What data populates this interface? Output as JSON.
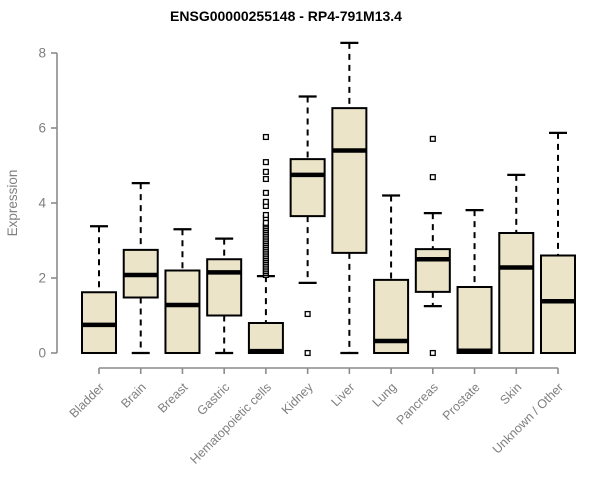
{
  "chart_data": {
    "type": "boxplot",
    "title": "ENSG00000255148 - RP4-791M13.4",
    "ylabel": "Expression",
    "xlabel": "",
    "ylim": [
      0,
      8
    ],
    "yticks": [
      0,
      2,
      4,
      6,
      8
    ],
    "grid": false,
    "legend": "none",
    "colors": {
      "box_fill": "#EBE4C8",
      "box_stroke": "#000000",
      "median": "#000000",
      "whisker": "#000000",
      "outlier_stroke": "#000000",
      "outlier_fill": "#ffffff",
      "axis_line": "#8c8c8c",
      "tick_label": "#7f7f7f",
      "title_color": "#000000"
    },
    "categories": [
      "Bladder",
      "Brain",
      "Breast",
      "Gastric",
      "Hematopoietic cells",
      "Kidney",
      "Liver",
      "Lung",
      "Pancreas",
      "Prostate",
      "Skin",
      "Unknown / Other"
    ],
    "boxes": [
      {
        "category": "Bladder",
        "low": 0,
        "q1": 0,
        "median": 0.75,
        "q3": 1.62,
        "high": 3.38,
        "outliers": []
      },
      {
        "category": "Brain",
        "low": 0,
        "q1": 1.48,
        "median": 2.08,
        "q3": 2.75,
        "high": 4.53,
        "outliers": []
      },
      {
        "category": "Breast",
        "low": 0,
        "q1": 0,
        "median": 1.28,
        "q3": 2.2,
        "high": 3.3,
        "outliers": []
      },
      {
        "category": "Gastric",
        "low": 0,
        "q1": 1.0,
        "median": 2.15,
        "q3": 2.5,
        "high": 3.05,
        "outliers": []
      },
      {
        "category": "Hematopoietic cells",
        "low": 0,
        "q1": 0,
        "median": 0.05,
        "q3": 0.8,
        "high": 2.05,
        "outliers": [
          2.08,
          2.13,
          2.18,
          2.23,
          2.28,
          2.33,
          2.38,
          2.43,
          2.48,
          2.53,
          2.58,
          2.63,
          2.68,
          2.73,
          2.78,
          2.83,
          2.88,
          2.93,
          2.98,
          3.03,
          3.08,
          3.13,
          3.18,
          3.23,
          3.28,
          3.33,
          3.38,
          3.43,
          3.47,
          3.6,
          3.68,
          3.92,
          4.03,
          4.27,
          4.64,
          4.83,
          5.09,
          5.76
        ]
      },
      {
        "category": "Kidney",
        "low": 1.87,
        "q1": 3.65,
        "median": 4.75,
        "q3": 5.17,
        "high": 6.84,
        "outliers": [
          1.04,
          0
        ]
      },
      {
        "category": "Liver",
        "low": 0,
        "q1": 2.67,
        "median": 5.4,
        "q3": 6.53,
        "high": 8.27,
        "outliers": []
      },
      {
        "category": "Lung",
        "low": 0,
        "q1": 0,
        "median": 0.32,
        "q3": 1.95,
        "high": 4.2,
        "outliers": []
      },
      {
        "category": "Pancreas",
        "low": 1.25,
        "q1": 1.63,
        "median": 2.5,
        "q3": 2.77,
        "high": 3.73,
        "outliers": [
          5.71,
          4.69,
          0
        ]
      },
      {
        "category": "Prostate",
        "low": 0,
        "q1": 0,
        "median": 0.06,
        "q3": 1.76,
        "high": 3.81,
        "outliers": []
      },
      {
        "category": "Skin",
        "low": 0,
        "q1": 0,
        "median": 2.28,
        "q3": 3.2,
        "high": 4.75,
        "outliers": []
      },
      {
        "category": "Unknown / Other",
        "low": 0,
        "q1": 0,
        "median": 1.38,
        "q3": 2.6,
        "high": 5.87,
        "outliers": []
      }
    ]
  }
}
